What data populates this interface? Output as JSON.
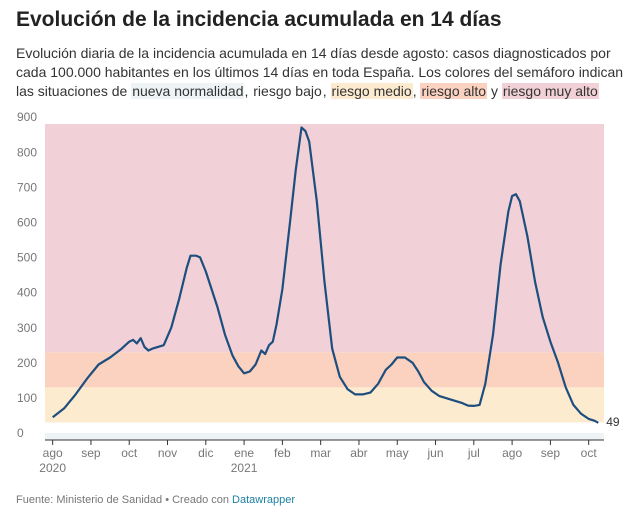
{
  "chart_data": {
    "type": "line",
    "title": "Evolución de la incidencia acumulada en 14 días",
    "subtitle_parts": [
      "Evolución diaria de la incidencia acumulada en 14 días desde agosto: casos diagnosticados por cada 100.000 habitantes en los últimos 14 días en toda España. Los colores del semáforo indican las situaciones de ",
      ", ",
      ", ",
      ", ",
      " y "
    ],
    "bands": [
      {
        "name": "nueva normalidad",
        "from": 0,
        "to": 20,
        "color": "#eef3f6"
      },
      {
        "name": "riesgo bajo",
        "from": 20,
        "to": 50,
        "color": "#ffffff"
      },
      {
        "name": "riesgo medio",
        "from": 50,
        "to": 150,
        "color": "#fdebd0"
      },
      {
        "name": "riesgo alto",
        "from": 150,
        "to": 250,
        "color": "#fbd2bf"
      },
      {
        "name": "riesgo muy alto",
        "from": 250,
        "color": "#f1d1d7"
      }
    ],
    "series": [
      {
        "name": "Incidencia acumulada en 14 días",
        "color": "#1d4e7e",
        "x": [
          0,
          0.3,
          0.6,
          0.9,
          1.2,
          1.5,
          1.8,
          2.0,
          2.1,
          2.2,
          2.3,
          2.4,
          2.5,
          2.6,
          2.9,
          3.1,
          3.3,
          3.5,
          3.6,
          3.75,
          3.85,
          4.0,
          4.3,
          4.5,
          4.7,
          4.85,
          5.0,
          5.15,
          5.3,
          5.45,
          5.55,
          5.65,
          5.75,
          5.85,
          6.0,
          6.2,
          6.35,
          6.5,
          6.6,
          6.7,
          6.9,
          7.1,
          7.3,
          7.5,
          7.7,
          7.9,
          8.1,
          8.3,
          8.5,
          8.7,
          8.85,
          9.0,
          9.2,
          9.4,
          9.55,
          9.7,
          9.9,
          10.1,
          10.4,
          10.7,
          10.85,
          11.0,
          11.15,
          11.3,
          11.5,
          11.7,
          11.9,
          12.0,
          12.1,
          12.2,
          12.4,
          12.6,
          12.8,
          13.0,
          13.2,
          13.4,
          13.6,
          13.8,
          14.0,
          14.15,
          14.25
        ],
        "values": [
          65,
          90,
          130,
          175,
          215,
          235,
          260,
          280,
          285,
          275,
          290,
          265,
          255,
          260,
          270,
          320,
          400,
          490,
          525,
          525,
          520,
          480,
          380,
          300,
          240,
          210,
          190,
          195,
          215,
          255,
          245,
          270,
          280,
          330,
          430,
          620,
          770,
          890,
          880,
          850,
          680,
          450,
          260,
          180,
          145,
          130,
          130,
          135,
          160,
          200,
          215,
          235,
          235,
          220,
          195,
          165,
          140,
          125,
          115,
          105,
          98,
          97,
          100,
          160,
          300,
          500,
          650,
          695,
          700,
          680,
          580,
          450,
          350,
          280,
          220,
          150,
          100,
          75,
          60,
          55,
          49
        ]
      }
    ],
    "ylim": [
      0,
      900
    ],
    "yticks": [
      0,
      100,
      200,
      300,
      400,
      500,
      600,
      700,
      800,
      900
    ],
    "xlim": [
      -0.2,
      14.4
    ],
    "xticks": [
      {
        "value": 0,
        "label": "ago"
      },
      {
        "value": 1,
        "label": "sep"
      },
      {
        "value": 2,
        "label": "oct"
      },
      {
        "value": 3,
        "label": "nov"
      },
      {
        "value": 4,
        "label": "dic"
      },
      {
        "value": 5,
        "label": "ene"
      },
      {
        "value": 6,
        "label": "feb"
      },
      {
        "value": 7,
        "label": "mar"
      },
      {
        "value": 8,
        "label": "abr"
      },
      {
        "value": 9,
        "label": "may"
      },
      {
        "value": 10,
        "label": "jun"
      },
      {
        "value": 11,
        "label": "jul"
      },
      {
        "value": 12,
        "label": "ago"
      },
      {
        "value": 13,
        "label": "sep"
      },
      {
        "value": 14,
        "label": "oct"
      }
    ],
    "year_labels": [
      {
        "value": 0,
        "label": "2020"
      },
      {
        "value": 5,
        "label": "2021"
      }
    ],
    "footer": "Fuente: Ministerio de Sanidad • Creado con ",
    "footer_link": "Datawrapper"
  }
}
